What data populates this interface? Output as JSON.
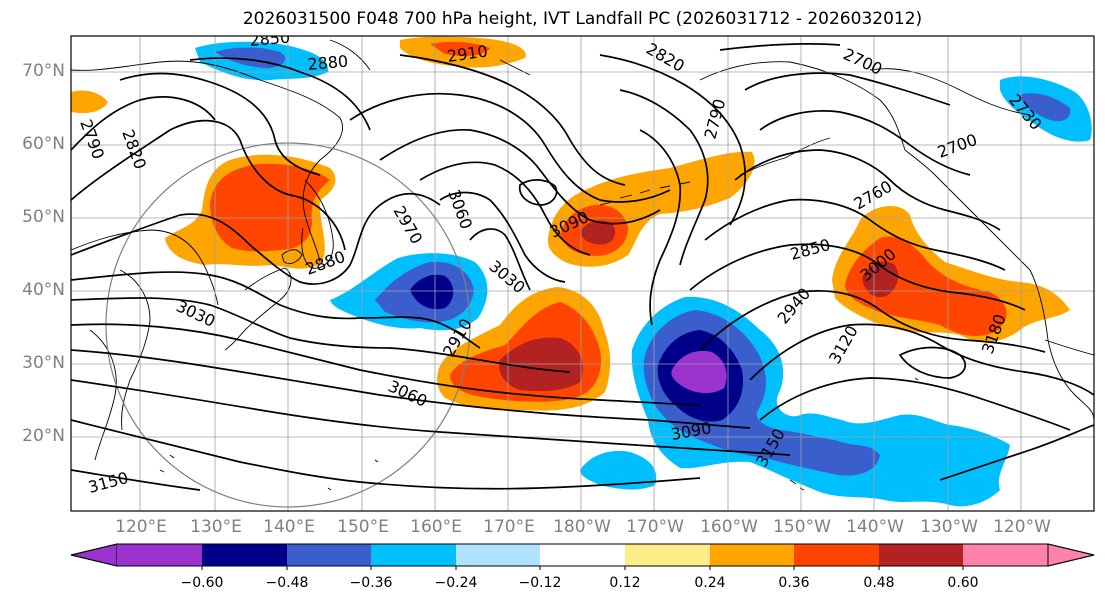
{
  "title": "2026031500 F048 700 hPa height, IVT Landfall PC (2026031712 - 2026032012)",
  "lat_labels": [
    "70°N",
    "60°N",
    "50°N",
    "40°N",
    "30°N",
    "20°N"
  ],
  "lon_labels": [
    "120°E",
    "130°E",
    "140°E",
    "150°E",
    "160°E",
    "170°E",
    "180°W",
    "170°W",
    "160°W",
    "150°W",
    "140°W",
    "130°W",
    "120°W"
  ],
  "contour_labels": [
    "2850",
    "2880",
    "2910",
    "2820",
    "2700",
    "2790",
    "2820",
    "2790",
    "2730",
    "2700",
    "2760",
    "2850",
    "2940",
    "3000",
    "3120",
    "3180",
    "3090",
    "3060",
    "3030",
    "2970",
    "2880",
    "3030",
    "2910",
    "3060",
    "3090",
    "3150",
    "3150"
  ],
  "colorbar": {
    "ticks": [
      "−0.60",
      "−0.48",
      "−0.36",
      "−0.24",
      "−0.12",
      "0.12",
      "0.24",
      "0.36",
      "0.48",
      "0.60"
    ],
    "colors": [
      "#9a32cd",
      "#00008b",
      "#3a5fcd",
      "#00bfff",
      "#b0e2ff",
      "#ffffff",
      "#ffec8b",
      "#ffa500",
      "#ff4500",
      "#b22222",
      "#ff82ab"
    ]
  }
}
